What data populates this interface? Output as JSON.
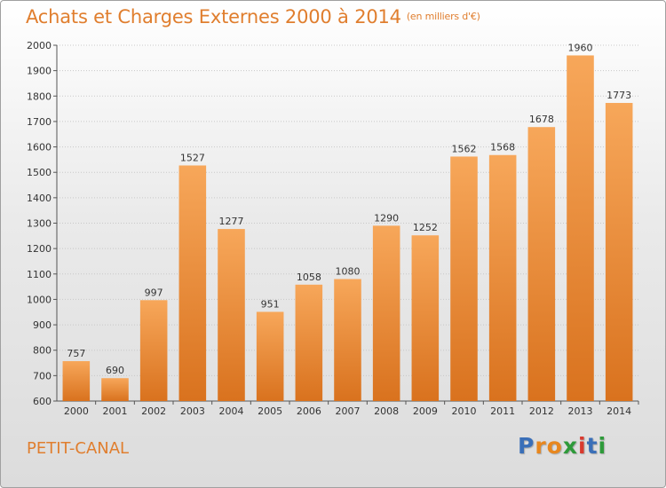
{
  "header": {
    "title": "Achats et Charges Externes 2000 à 2014",
    "subtitle": "(en milliers d'€)"
  },
  "footer": {
    "commune": "PETIT-CANAL",
    "logo_letters": [
      "P",
      "r",
      "o",
      "x",
      "i",
      "t",
      "i"
    ]
  },
  "colors": {
    "accent": "#E07E2E",
    "bar_top": "#F7A75A",
    "bar_bottom": "#D9721E",
    "logo": [
      "#3a6fb8",
      "#e8871e",
      "#e8871e",
      "#2e9a3a",
      "#d93a2e",
      "#3a6fb8",
      "#2e9a3a"
    ]
  },
  "chart_data": {
    "type": "bar",
    "categories": [
      "2000",
      "2001",
      "2002",
      "2003",
      "2004",
      "2005",
      "2006",
      "2007",
      "2008",
      "2009",
      "2010",
      "2011",
      "2012",
      "2013",
      "2014"
    ],
    "values": [
      757,
      690,
      997,
      1527,
      1277,
      951,
      1058,
      1080,
      1290,
      1252,
      1562,
      1568,
      1678,
      1960,
      1773
    ],
    "title": "Achats et Charges Externes 2000 à 2014",
    "ylim": [
      600,
      2000
    ],
    "yticks": [
      600,
      700,
      800,
      900,
      1000,
      1100,
      1200,
      1300,
      1400,
      1500,
      1600,
      1700,
      1800,
      1900,
      2000
    ],
    "grid": true,
    "data_labels": true
  }
}
